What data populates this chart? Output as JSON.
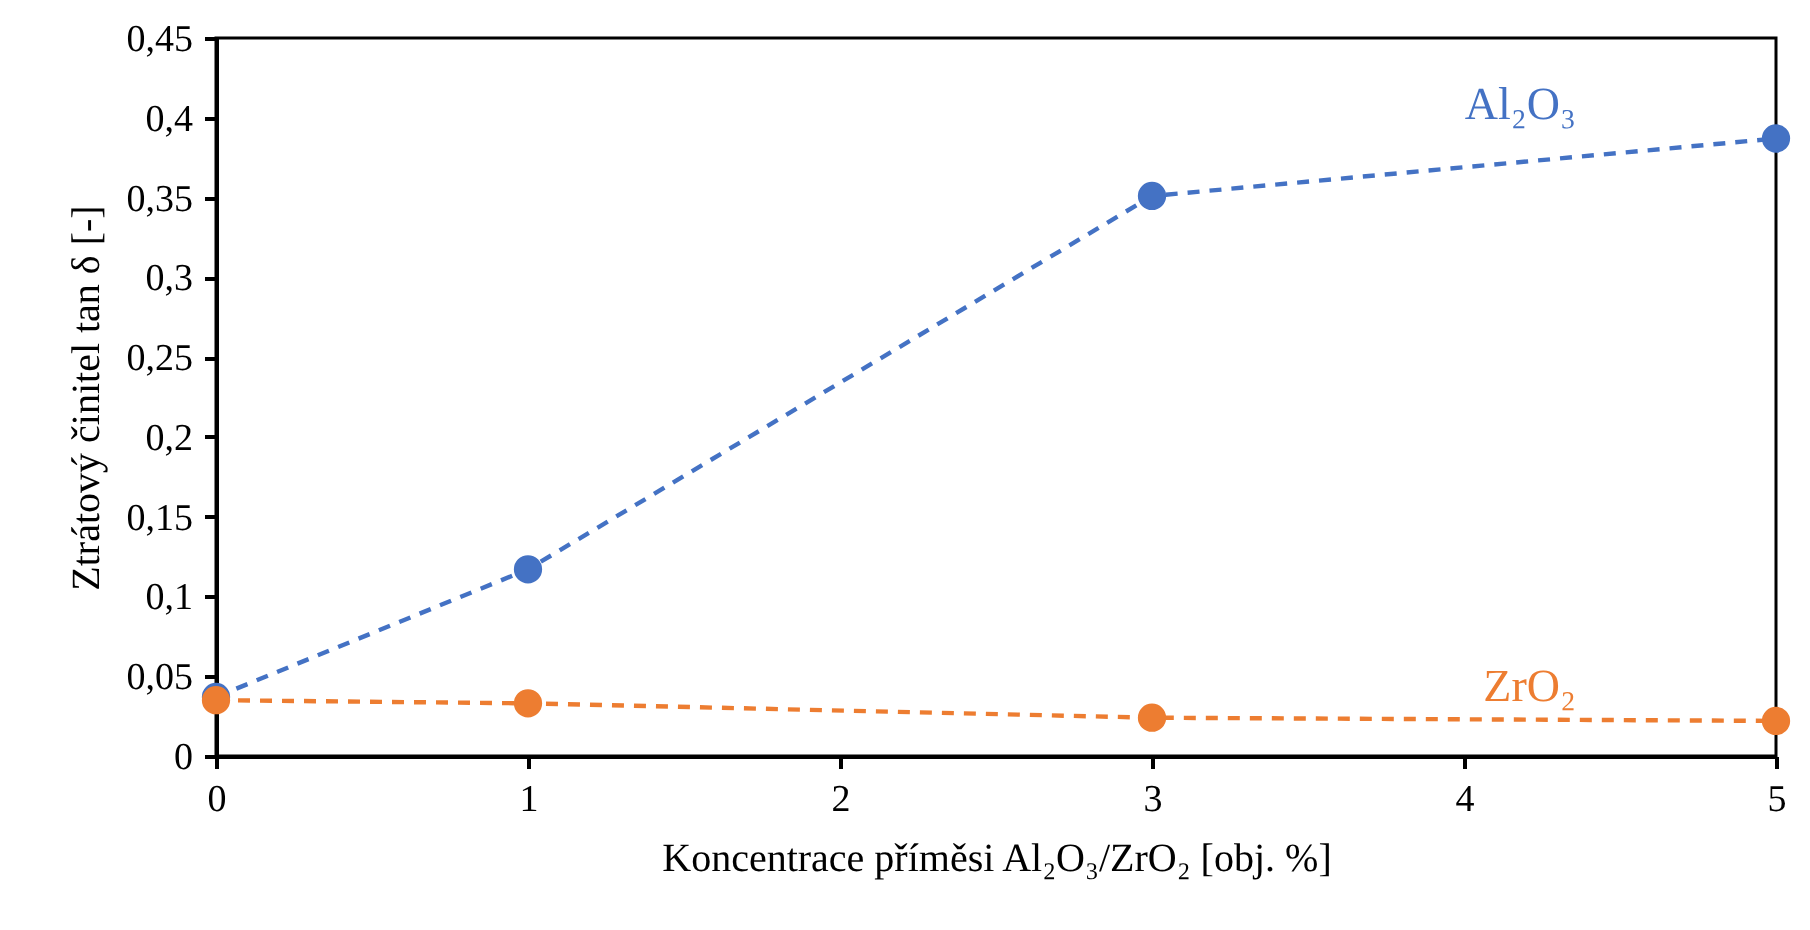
{
  "chart_data": {
    "type": "line",
    "xlabel": "Koncentrace příměsi Al₂O₃/ZrO₂ [obj. %]",
    "ylabel": "Ztrátový činitel tan δ [-]",
    "x": [
      0,
      1,
      3,
      5
    ],
    "series": [
      {
        "name": "Al₂O₃",
        "color": "#4472c4",
        "values": [
          0.037,
          0.117,
          0.351,
          0.387
        ]
      },
      {
        "name": "ZrO₂",
        "color": "#ed7d31",
        "values": [
          0.035,
          0.033,
          0.024,
          0.022
        ]
      }
    ],
    "xlim": [
      0,
      5
    ],
    "xticks": [
      0,
      1,
      2,
      3,
      4,
      5
    ],
    "ylim": [
      0,
      0.45
    ],
    "yticks": [
      0,
      {
        "value": 0.05,
        "label": "0,05"
      },
      {
        "value": 0.1,
        "label": "0,1"
      },
      {
        "value": 0.15,
        "label": "0,15"
      },
      {
        "value": 0.2,
        "label": "0,2"
      },
      {
        "value": 0.25,
        "label": "0,25"
      },
      {
        "value": 0.3,
        "label": "0,3"
      },
      {
        "value": 0.35,
        "label": "0,35"
      },
      {
        "value": 0.4,
        "label": "0,4"
      },
      {
        "value": 0.45,
        "label": "0,45"
      }
    ],
    "grid": false,
    "marker": "circle",
    "line_style": "dashed"
  }
}
